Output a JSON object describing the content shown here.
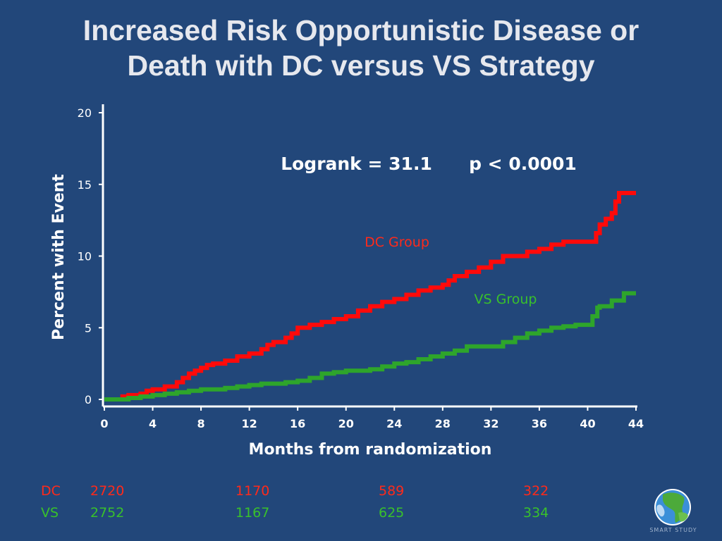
{
  "title_line1": "Increased Risk Opportunistic Disease or",
  "title_line2": "Death with DC versus VS Strategy",
  "chart_data": {
    "type": "line",
    "xlabel": "Months from randomization",
    "ylabel": "Percent with Event",
    "xlim": [
      0,
      44
    ],
    "ylim": [
      0,
      20
    ],
    "xticks": [
      0,
      4,
      8,
      12,
      16,
      20,
      24,
      28,
      32,
      36,
      40,
      44
    ],
    "yticks": [
      0,
      5,
      10,
      15,
      20
    ],
    "step": true,
    "annotation": "Logrank = 31.1      p < 0.0001",
    "colors": {
      "DC Group": "#ff0a0a",
      "VS Group": "#2ea52b"
    },
    "series": [
      {
        "name": "DC Group",
        "color": "#ff0a0a",
        "x": [
          0,
          1.5,
          2,
          3,
          3.5,
          4,
          5,
          6,
          6.5,
          7,
          7.5,
          8,
          8.5,
          9,
          10,
          11,
          12,
          13,
          13.5,
          14,
          15,
          15.5,
          16,
          17,
          18,
          19,
          20,
          21,
          22,
          23,
          24,
          25,
          26,
          27,
          28,
          28.5,
          29,
          30,
          31,
          32,
          33,
          35,
          36,
          37,
          38,
          39,
          40,
          40.7,
          41,
          41.5,
          42,
          42.3,
          42.6,
          44
        ],
        "y": [
          0,
          0.2,
          0.3,
          0.4,
          0.6,
          0.7,
          0.9,
          1.2,
          1.5,
          1.8,
          2.0,
          2.2,
          2.4,
          2.5,
          2.7,
          3.0,
          3.2,
          3.5,
          3.8,
          4.0,
          4.3,
          4.6,
          5.0,
          5.2,
          5.4,
          5.6,
          5.8,
          6.2,
          6.5,
          6.8,
          7.0,
          7.3,
          7.6,
          7.8,
          8.0,
          8.3,
          8.6,
          8.9,
          9.2,
          9.6,
          10.0,
          10.3,
          10.5,
          10.8,
          11.0,
          11.0,
          11.0,
          11.6,
          12.2,
          12.6,
          13.0,
          13.8,
          14.4,
          14.4
        ]
      },
      {
        "name": "VS Group",
        "color": "#2ea52b",
        "x": [
          0,
          2,
          3,
          4,
          5,
          6,
          7,
          8,
          9,
          10,
          11,
          12,
          13,
          14,
          15,
          16,
          17,
          18,
          19,
          20,
          21,
          22,
          23,
          24,
          25,
          26,
          27,
          28,
          29,
          30,
          32,
          33,
          34,
          35,
          36,
          37,
          38,
          39,
          40,
          40.4,
          40.8,
          41,
          42,
          43,
          44
        ],
        "y": [
          0,
          0.1,
          0.2,
          0.3,
          0.4,
          0.5,
          0.6,
          0.7,
          0.7,
          0.8,
          0.9,
          1.0,
          1.1,
          1.1,
          1.2,
          1.3,
          1.5,
          1.8,
          1.9,
          2.0,
          2.0,
          2.1,
          2.3,
          2.5,
          2.6,
          2.8,
          3.0,
          3.2,
          3.4,
          3.7,
          3.7,
          4.0,
          4.3,
          4.6,
          4.8,
          5.0,
          5.1,
          5.2,
          5.2,
          5.8,
          6.4,
          6.5,
          6.9,
          7.4,
          7.4
        ]
      }
    ],
    "series_labels": [
      "DC Group",
      "VS Group"
    ]
  },
  "risk_table": {
    "rows": [
      {
        "label": "DC",
        "values": [
          "2720",
          "1170",
          "589",
          "322"
        ],
        "color": "#ff2a1a"
      },
      {
        "label": "VS",
        "values": [
          "2752",
          "1167",
          "625",
          "334"
        ],
        "color": "#39c12b"
      }
    ]
  },
  "logo": {
    "text": "SMART STUDY",
    "icon": "globe-icon"
  }
}
